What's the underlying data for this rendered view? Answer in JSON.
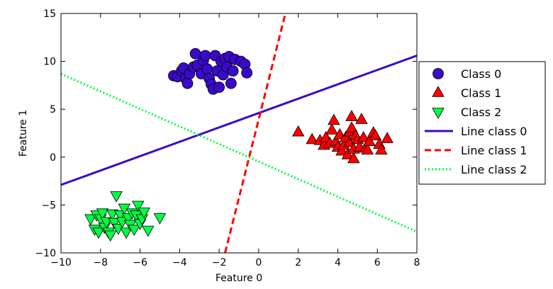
{
  "chart_data": {
    "type": "scatter",
    "xlabel": "Feature 0",
    "ylabel": "Feature 1",
    "xlim": [
      -10,
      8
    ],
    "ylim": [
      -10,
      15
    ],
    "xticks": [
      -10,
      -8,
      -6,
      -4,
      -2,
      0,
      2,
      4,
      6,
      8
    ],
    "yticks": [
      -10,
      -5,
      0,
      5,
      10,
      15
    ],
    "xtick_labels": [
      "−10",
      "−8",
      "−6",
      "−4",
      "−2",
      "0",
      "2",
      "4",
      "6",
      "8"
    ],
    "ytick_labels": [
      "−10",
      "−5",
      "0",
      "5",
      "10",
      "15"
    ],
    "grid": false,
    "legend_position": "outside right",
    "series": [
      {
        "name": "Class 0",
        "kind": "points",
        "marker": "circle",
        "color": "#3a0ac9",
        "points": [
          [
            -4.3,
            8.5
          ],
          [
            -4.1,
            8.4
          ],
          [
            -3.9,
            9.0
          ],
          [
            -3.8,
            9.3
          ],
          [
            -3.7,
            8.2
          ],
          [
            -3.6,
            7.7
          ],
          [
            -3.5,
            8.7
          ],
          [
            -3.3,
            9.4
          ],
          [
            -3.2,
            10.8
          ],
          [
            -3.1,
            9.6
          ],
          [
            -2.9,
            8.7
          ],
          [
            -2.8,
            10.1
          ],
          [
            -2.7,
            10.6
          ],
          [
            -2.6,
            9.2
          ],
          [
            -2.5,
            8.2
          ],
          [
            -2.4,
            7.6
          ],
          [
            -2.3,
            7.1
          ],
          [
            -2.2,
            10.6
          ],
          [
            -2.1,
            9.0
          ],
          [
            -2.0,
            7.3
          ],
          [
            -1.9,
            10.0
          ],
          [
            -1.8,
            8.6
          ],
          [
            -1.7,
            10.3
          ],
          [
            -1.6,
            9.4
          ],
          [
            -1.5,
            10.5
          ],
          [
            -1.4,
            7.7
          ],
          [
            -1.3,
            9.0
          ],
          [
            -1.2,
            10.2
          ],
          [
            -0.9,
            10.0
          ],
          [
            -0.7,
            9.7
          ],
          [
            -0.6,
            8.8
          ]
        ]
      },
      {
        "name": "Class 1",
        "kind": "points",
        "marker": "triangle-up",
        "color": "#ff0000",
        "points": [
          [
            2.0,
            2.6
          ],
          [
            2.7,
            1.8
          ],
          [
            3.1,
            1.7
          ],
          [
            3.3,
            1.2
          ],
          [
            3.4,
            2.0
          ],
          [
            3.6,
            1.4
          ],
          [
            3.7,
            2.8
          ],
          [
            3.8,
            3.8
          ],
          [
            3.9,
            1.6
          ],
          [
            4.0,
            1.0
          ],
          [
            4.1,
            2.3
          ],
          [
            4.2,
            0.6
          ],
          [
            4.3,
            1.2
          ],
          [
            4.4,
            2.0
          ],
          [
            4.5,
            0.2
          ],
          [
            4.6,
            1.5
          ],
          [
            4.6,
            2.6
          ],
          [
            4.7,
            4.2
          ],
          [
            4.7,
            3.0
          ],
          [
            4.8,
            -0.2
          ],
          [
            4.8,
            0.8
          ],
          [
            4.9,
            2.2
          ],
          [
            5.0,
            1.8
          ],
          [
            5.1,
            1.0
          ],
          [
            5.2,
            3.9
          ],
          [
            5.3,
            2.0
          ],
          [
            5.4,
            0.9
          ],
          [
            5.5,
            0.7
          ],
          [
            5.6,
            1.6
          ],
          [
            5.8,
            2.5
          ],
          [
            5.9,
            2.2
          ],
          [
            6.1,
            1.3
          ],
          [
            6.2,
            0.7
          ],
          [
            6.5,
            1.9
          ]
        ]
      },
      {
        "name": "Class 2",
        "kind": "points",
        "marker": "triangle-down",
        "color": "#00ff44",
        "points": [
          [
            -8.5,
            -6.4
          ],
          [
            -8.3,
            -7.5
          ],
          [
            -8.2,
            -6.0
          ],
          [
            -8.1,
            -7.8
          ],
          [
            -8.0,
            -6.4
          ],
          [
            -7.9,
            -5.8
          ],
          [
            -7.8,
            -7.3
          ],
          [
            -7.7,
            -6.7
          ],
          [
            -7.6,
            -7.8
          ],
          [
            -7.5,
            -8.1
          ],
          [
            -7.4,
            -5.9
          ],
          [
            -7.3,
            -6.8
          ],
          [
            -7.2,
            -4.0
          ],
          [
            -7.1,
            -7.4
          ],
          [
            -7.0,
            -6.0
          ],
          [
            -6.9,
            -6.7
          ],
          [
            -6.8,
            -5.3
          ],
          [
            -6.7,
            -7.8
          ],
          [
            -6.6,
            -6.3
          ],
          [
            -6.5,
            -7.0
          ],
          [
            -6.4,
            -5.8
          ],
          [
            -6.3,
            -7.5
          ],
          [
            -6.2,
            -6.0
          ],
          [
            -6.1,
            -5.0
          ],
          [
            -6.0,
            -6.9
          ],
          [
            -5.9,
            -6.4
          ],
          [
            -5.8,
            -5.7
          ],
          [
            -5.6,
            -7.6
          ],
          [
            -5.0,
            -6.3
          ]
        ]
      },
      {
        "name": "Line class 0",
        "kind": "line",
        "style": "solid",
        "color": "#3a0ac9",
        "x": [
          -10,
          8
        ],
        "y": [
          -2.9,
          10.6
        ]
      },
      {
        "name": "Line class 1",
        "kind": "line",
        "style": "dashed",
        "color": "#ff0000",
        "x": [
          -1.7,
          1.35
        ],
        "y": [
          -10,
          15
        ]
      },
      {
        "name": "Line class 2",
        "kind": "line",
        "style": "dotted",
        "color": "#00ff44",
        "x": [
          -10,
          8
        ],
        "y": [
          8.7,
          -7.8
        ]
      }
    ]
  }
}
